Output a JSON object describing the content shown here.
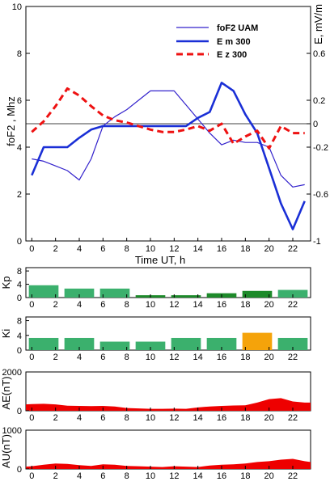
{
  "chart_data": [
    {
      "type": "line",
      "xlabel": "Time UT, h",
      "ylabel": "foF2 , Mhz",
      "ylabel_right": "E, mV/m",
      "xlim": [
        -0.5,
        23.5
      ],
      "ylim": [
        0,
        10
      ],
      "ylim_right": [
        -1,
        1
      ],
      "x_ticks": [
        "0",
        "2",
        "4",
        "6",
        "8",
        "10",
        "12",
        "14",
        "16",
        "18",
        "20",
        "22"
      ],
      "y_ticks": [
        "0",
        "2",
        "4",
        "6",
        "8",
        "10"
      ],
      "y_ticks_right": [
        "-1",
        "-0.6",
        "-0.2",
        "0",
        "0.2",
        "0.6"
      ],
      "legend_position": "top-right",
      "series": [
        {
          "name": "foF2 UAM",
          "axis": "left",
          "color": "#3322cc",
          "style": "thin",
          "x": [
            0,
            1,
            2,
            3,
            4,
            5,
            6,
            7,
            8,
            9,
            10,
            11,
            12,
            13,
            14,
            15,
            16,
            17,
            18,
            19,
            20,
            21,
            22,
            23
          ],
          "y": [
            3.5,
            3.4,
            3.2,
            3.0,
            2.6,
            3.5,
            4.9,
            5.3,
            5.6,
            6.0,
            6.4,
            6.4,
            6.4,
            5.8,
            5.2,
            4.6,
            4.1,
            4.3,
            4.2,
            4.2,
            4.0,
            2.8,
            2.3,
            2.4
          ]
        },
        {
          "name": "E m 300",
          "axis": "right",
          "color": "#1a2fd6",
          "style": "thick",
          "x": [
            0,
            1,
            2,
            3,
            4,
            5,
            6,
            7,
            8,
            9,
            10,
            11,
            12,
            13,
            14,
            15,
            16,
            17,
            18,
            19,
            20,
            21,
            22,
            23
          ],
          "y": [
            -0.44,
            -0.2,
            -0.2,
            -0.2,
            -0.12,
            -0.05,
            -0.02,
            -0.02,
            -0.02,
            -0.02,
            -0.02,
            -0.02,
            -0.02,
            -0.02,
            0.05,
            0.1,
            0.35,
            0.28,
            0.08,
            -0.08,
            -0.38,
            -0.68,
            -0.9,
            -0.66
          ]
        },
        {
          "name": "E z  300",
          "axis": "right",
          "color": "#ee1111",
          "style": "dashed",
          "x": [
            0,
            1,
            2,
            3,
            4,
            5,
            6,
            7,
            8,
            9,
            10,
            11,
            12,
            13,
            14,
            15,
            16,
            17,
            18,
            19,
            20,
            21,
            22,
            23
          ],
          "y": [
            -0.07,
            0.02,
            0.15,
            0.3,
            0.24,
            0.15,
            0.07,
            0.03,
            0.01,
            -0.02,
            -0.05,
            -0.07,
            -0.07,
            -0.05,
            -0.02,
            -0.06,
            -0.0,
            -0.17,
            -0.11,
            -0.06,
            -0.21,
            -0.02,
            -0.08,
            -0.08
          ]
        }
      ]
    },
    {
      "type": "bar",
      "ylabel": "Kp",
      "ylim": [
        0,
        9
      ],
      "y_ticks": [
        "0",
        "4",
        "8"
      ],
      "x_ticks": [
        "0",
        "2",
        "4",
        "6",
        "8",
        "10",
        "12",
        "14",
        "16",
        "18",
        "20",
        "22"
      ],
      "bin_starts": [
        -0.5,
        2.5,
        5.5,
        8.5,
        11.5,
        14.5,
        17.5,
        20.5
      ],
      "values": [
        3.7,
        2.7,
        2.7,
        0.7,
        0.7,
        1.3,
        2.0,
        2.3
      ],
      "colors": [
        "#3bb06d",
        "#3bb06d",
        "#3bb06d",
        "#1d8a2a",
        "#1d8a2a",
        "#1d8a2a",
        "#1d8a2a",
        "#3bb06d"
      ]
    },
    {
      "type": "bar",
      "ylabel": "Ki",
      "ylim": [
        0,
        9
      ],
      "y_ticks": [
        "0",
        "4",
        "8"
      ],
      "x_ticks": [
        "0",
        "2",
        "4",
        "6",
        "8",
        "10",
        "12",
        "14",
        "16",
        "18",
        "20",
        "22"
      ],
      "bin_starts": [
        -0.5,
        2.5,
        5.5,
        8.5,
        11.5,
        14.5,
        17.5,
        20.5
      ],
      "values": [
        3.3,
        3.3,
        2.3,
        2.3,
        3.3,
        3.3,
        4.7,
        3.3
      ],
      "colors": [
        "#3bb06d",
        "#3bb06d",
        "#3bb06d",
        "#3bb06d",
        "#3bb06d",
        "#3bb06d",
        "#f5a30a",
        "#3bb06d"
      ]
    },
    {
      "type": "area",
      "ylabel": "AE(nT)",
      "ylim": [
        0,
        2000
      ],
      "y_ticks": [
        "0",
        "2000"
      ],
      "x_ticks": [
        "0",
        "2",
        "4",
        "6",
        "8",
        "10",
        "12",
        "14",
        "16",
        "18",
        "20",
        "22"
      ],
      "color": "#ee0000",
      "x": [
        -0.5,
        0,
        1,
        2,
        3,
        4,
        5,
        6,
        7,
        8,
        9,
        10,
        11,
        12,
        13,
        14,
        15,
        16,
        17,
        18,
        19,
        20,
        21,
        22,
        23,
        23.5
      ],
      "y": [
        330,
        340,
        360,
        330,
        260,
        250,
        240,
        250,
        220,
        140,
        120,
        100,
        100,
        110,
        100,
        170,
        220,
        250,
        270,
        280,
        420,
        600,
        650,
        480,
        420,
        420
      ]
    },
    {
      "type": "area",
      "ylabel": "AU(nT)",
      "ylim": [
        0,
        1000
      ],
      "y_ticks": [
        "0",
        "1000"
      ],
      "x_ticks": [
        "0",
        "2",
        "4",
        "6",
        "8",
        "10",
        "12",
        "14",
        "16",
        "18",
        "20",
        "22"
      ],
      "color": "#ee0000",
      "x": [
        -0.5,
        0,
        1,
        2,
        3,
        4,
        5,
        6,
        7,
        8,
        9,
        10,
        11,
        12,
        13,
        14,
        15,
        16,
        17,
        18,
        19,
        20,
        21,
        22,
        23,
        23.5
      ],
      "y": [
        60,
        70,
        110,
        140,
        130,
        100,
        80,
        120,
        110,
        80,
        70,
        60,
        50,
        70,
        60,
        50,
        90,
        110,
        120,
        140,
        180,
        200,
        240,
        260,
        200,
        180
      ]
    }
  ]
}
